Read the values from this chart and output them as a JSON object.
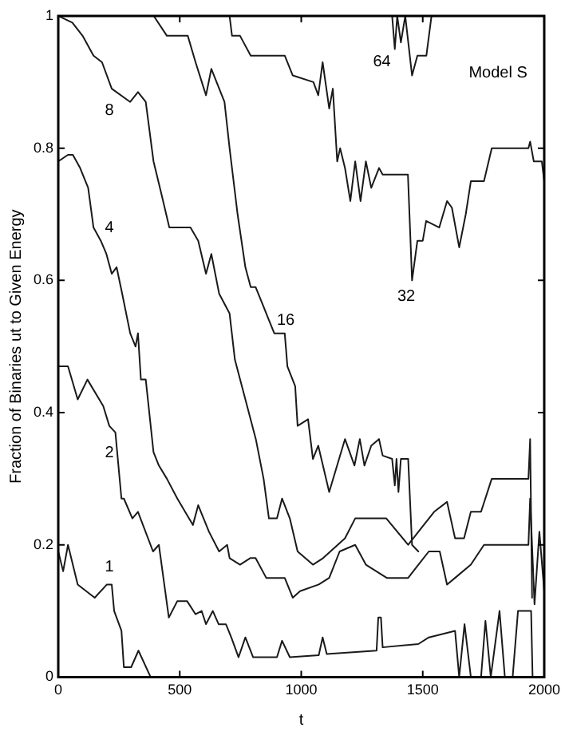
{
  "chart_data": {
    "type": "line",
    "xlabel": "t",
    "ylabel": "Fraction of Binaries ut to Given Energy",
    "xlim": [
      0,
      2000
    ],
    "xticks": [
      0,
      500,
      1000,
      1500,
      2000
    ],
    "ylim": [
      0,
      1
    ],
    "yticks": [
      0,
      0.2,
      0.4,
      0.6,
      0.8,
      1
    ],
    "grid": false,
    "legend": false,
    "marker": "none",
    "line_style": "solid",
    "series": [
      {
        "color": "#1a1a1a",
        "x": [
          0,
          20,
          40,
          80,
          150,
          200,
          220,
          230,
          260,
          270,
          300,
          330,
          380
        ],
        "values": [
          0.19,
          0.16,
          0.2,
          0.14,
          0.12,
          0.14,
          0.14,
          0.1,
          0.07,
          0.015,
          0.015,
          0.04,
          0
        ]
      },
      {
        "color": "#1a1a1a",
        "x": [
          0,
          40,
          80,
          120,
          185,
          210,
          235,
          260,
          270,
          305,
          328,
          390,
          414,
          455,
          490,
          530,
          565,
          590,
          608,
          636,
          660,
          690,
          712,
          742,
          770,
          802,
          900,
          921,
          953,
          1072,
          1088,
          1105,
          1310,
          1317,
          1328,
          1335,
          1482,
          1525,
          1633,
          1650,
          1672,
          1698,
          1740,
          1758,
          1780,
          1816,
          1838,
          1870,
          1892,
          1946,
          1952
        ],
        "values": [
          0.47,
          0.47,
          0.42,
          0.45,
          0.41,
          0.38,
          0.37,
          0.27,
          0.27,
          0.24,
          0.25,
          0.19,
          0.2,
          0.09,
          0.115,
          0.115,
          0.095,
          0.1,
          0.08,
          0.1,
          0.08,
          0.08,
          0.06,
          0.03,
          0.06,
          0.03,
          0.03,
          0.055,
          0.03,
          0.033,
          0.06,
          0.035,
          0.04,
          0.09,
          0.09,
          0.045,
          0.05,
          0.06,
          0.07,
          0,
          0.08,
          0,
          0,
          0.085,
          0,
          0.1,
          0,
          0,
          0.1,
          0.1,
          0
        ]
      },
      {
        "color": "#1a1a1a",
        "x": [
          0,
          40,
          60,
          90,
          123,
          145,
          175,
          198,
          220,
          240,
          263,
          296,
          318,
          328,
          340,
          360,
          392,
          414,
          447,
          490,
          554,
          576,
          620,
          662,
          695,
          705,
          748,
          790,
          812,
          856,
          932,
          965,
          995,
          1072,
          1115,
          1158,
          1222,
          1266,
          1352,
          1440,
          1482,
          1525,
          1570,
          1600,
          1633,
          1698,
          1752,
          1935,
          1942,
          1960,
          1980,
          2000
        ],
        "values": [
          0.78,
          0.79,
          0.79,
          0.77,
          0.74,
          0.68,
          0.66,
          0.64,
          0.61,
          0.62,
          0.58,
          0.52,
          0.5,
          0.52,
          0.45,
          0.45,
          0.34,
          0.32,
          0.3,
          0.27,
          0.23,
          0.26,
          0.22,
          0.19,
          0.2,
          0.18,
          0.17,
          0.18,
          0.18,
          0.15,
          0.15,
          0.12,
          0.13,
          0.14,
          0.15,
          0.19,
          0.2,
          0.17,
          0.15,
          0.15,
          0.17,
          0.19,
          0.19,
          0.14,
          0.15,
          0.17,
          0.2,
          0.2,
          0.27,
          0.11,
          0.22,
          0.13
        ]
      },
      {
        "color": "#1a1a1a",
        "x": [
          0,
          58,
          100,
          145,
          180,
          220,
          296,
          328,
          360,
          392,
          425,
          457,
          544,
          576,
          608,
          630,
          662,
          705,
          727,
          770,
          813,
          845,
          867,
          900,
          921,
          953,
          985,
          1048,
          1090,
          1180,
          1222,
          1350,
          1440,
          1504,
          1547,
          1600,
          1633,
          1670,
          1698,
          1740,
          1784,
          1935,
          1942,
          1950
        ],
        "values": [
          1,
          0.99,
          0.97,
          0.94,
          0.93,
          0.89,
          0.87,
          0.885,
          0.87,
          0.78,
          0.73,
          0.68,
          0.68,
          0.66,
          0.61,
          0.64,
          0.58,
          0.55,
          0.48,
          0.42,
          0.36,
          0.3,
          0.24,
          0.24,
          0.27,
          0.24,
          0.19,
          0.17,
          0.18,
          0.21,
          0.24,
          0.24,
          0.2,
          0.23,
          0.25,
          0.265,
          0.21,
          0.21,
          0.25,
          0.25,
          0.3,
          0.3,
          0.36,
          0.12
        ]
      },
      {
        "color": "#1a1a1a",
        "x": [
          393,
          447,
          533,
          565,
          608,
          630,
          684,
          705,
          738,
          770,
          792,
          812,
          845,
          867,
          889,
          932,
          943,
          975,
          985,
          1028,
          1048,
          1070,
          1115,
          1180,
          1219,
          1241,
          1260,
          1288,
          1320,
          1335,
          1374,
          1385,
          1392,
          1400,
          1410,
          1440,
          1456,
          1482
        ],
        "values": [
          1,
          0.97,
          0.97,
          0.93,
          0.88,
          0.92,
          0.87,
          0.8,
          0.7,
          0.62,
          0.59,
          0.59,
          0.56,
          0.54,
          0.52,
          0.52,
          0.47,
          0.44,
          0.38,
          0.39,
          0.33,
          0.35,
          0.28,
          0.36,
          0.32,
          0.36,
          0.32,
          0.35,
          0.36,
          0.335,
          0.33,
          0.29,
          0.33,
          0.28,
          0.33,
          0.33,
          0.2,
          0.19
        ]
      },
      {
        "color": "#1a1a1a",
        "x": [
          705,
          715,
          748,
          792,
          932,
          965,
          1050,
          1070,
          1088,
          1115,
          1130,
          1148,
          1160,
          1180,
          1202,
          1222,
          1244,
          1266,
          1288,
          1320,
          1335,
          1439,
          1456,
          1478,
          1500,
          1514,
          1568,
          1600,
          1620,
          1650,
          1677,
          1698,
          1752,
          1784,
          1935,
          1942,
          1957,
          1990,
          2000
        ],
        "values": [
          1,
          0.97,
          0.97,
          0.94,
          0.94,
          0.91,
          0.9,
          0.88,
          0.93,
          0.86,
          0.89,
          0.78,
          0.8,
          0.77,
          0.72,
          0.78,
          0.72,
          0.78,
          0.74,
          0.77,
          0.76,
          0.76,
          0.6,
          0.66,
          0.66,
          0.69,
          0.68,
          0.72,
          0.71,
          0.65,
          0.7,
          0.75,
          0.75,
          0.8,
          0.8,
          0.81,
          0.78,
          0.78,
          0.75
        ]
      },
      {
        "color": "#1a1a1a",
        "x": [
          1374,
          1385,
          1395,
          1410,
          1428,
          1456,
          1478,
          1515,
          1536
        ],
        "values": [
          1,
          0.95,
          1,
          0.96,
          1,
          0.91,
          0.94,
          0.94,
          1
        ]
      }
    ],
    "annotations": [
      "1",
      "2",
      "4",
      "8",
      "16",
      "32",
      "64",
      "Model S"
    ]
  }
}
